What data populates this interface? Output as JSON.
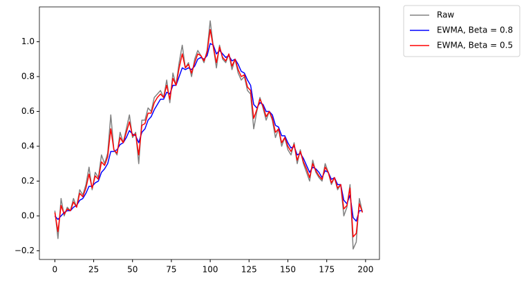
{
  "chart_data": {
    "type": "line",
    "x": [
      0,
      2,
      4,
      6,
      8,
      10,
      12,
      14,
      16,
      18,
      20,
      22,
      24,
      26,
      28,
      30,
      32,
      34,
      36,
      38,
      40,
      42,
      44,
      46,
      48,
      50,
      52,
      54,
      56,
      58,
      60,
      62,
      64,
      66,
      68,
      70,
      72,
      74,
      76,
      78,
      80,
      82,
      84,
      86,
      88,
      90,
      92,
      94,
      96,
      98,
      100,
      102,
      104,
      106,
      108,
      110,
      112,
      114,
      116,
      118,
      120,
      122,
      124,
      126,
      128,
      130,
      132,
      134,
      136,
      138,
      140,
      142,
      144,
      146,
      148,
      150,
      152,
      154,
      156,
      158,
      160,
      162,
      164,
      166,
      168,
      170,
      172,
      174,
      176,
      178,
      180,
      182,
      184,
      186,
      188,
      190,
      192,
      194,
      196,
      198
    ],
    "series": [
      {
        "name": "Raw",
        "color": "#808080",
        "values": [
          0.03,
          -0.13,
          0.1,
          0.0,
          0.05,
          0.03,
          0.1,
          0.05,
          0.15,
          0.12,
          0.18,
          0.28,
          0.15,
          0.25,
          0.22,
          0.35,
          0.3,
          0.36,
          0.58,
          0.38,
          0.35,
          0.48,
          0.42,
          0.5,
          0.58,
          0.45,
          0.48,
          0.3,
          0.55,
          0.55,
          0.62,
          0.6,
          0.68,
          0.7,
          0.72,
          0.68,
          0.78,
          0.65,
          0.82,
          0.75,
          0.88,
          0.98,
          0.85,
          0.88,
          0.8,
          0.9,
          0.95,
          0.92,
          0.88,
          0.95,
          1.12,
          0.97,
          0.85,
          0.98,
          0.9,
          0.88,
          0.93,
          0.84,
          0.9,
          0.82,
          0.78,
          0.8,
          0.72,
          0.7,
          0.5,
          0.6,
          0.68,
          0.62,
          0.55,
          0.6,
          0.55,
          0.45,
          0.5,
          0.4,
          0.45,
          0.38,
          0.35,
          0.42,
          0.3,
          0.38,
          0.3,
          0.25,
          0.2,
          0.32,
          0.25,
          0.22,
          0.2,
          0.3,
          0.25,
          0.18,
          0.22,
          0.15,
          0.18,
          0.0,
          0.05,
          0.18,
          -0.19,
          -0.15,
          0.1,
          0.02
        ]
      },
      {
        "name": "EWMA, Beta = 0.8",
        "color": "#0000ff",
        "values": [
          0.0,
          -0.02,
          0.0,
          0.02,
          0.03,
          0.03,
          0.05,
          0.06,
          0.09,
          0.1,
          0.13,
          0.17,
          0.17,
          0.19,
          0.2,
          0.25,
          0.27,
          0.3,
          0.37,
          0.37,
          0.38,
          0.41,
          0.42,
          0.45,
          0.49,
          0.47,
          0.46,
          0.42,
          0.48,
          0.5,
          0.55,
          0.57,
          0.61,
          0.64,
          0.67,
          0.67,
          0.71,
          0.7,
          0.75,
          0.75,
          0.8,
          0.85,
          0.84,
          0.85,
          0.84,
          0.86,
          0.9,
          0.91,
          0.9,
          0.92,
          0.99,
          0.98,
          0.93,
          0.95,
          0.93,
          0.91,
          0.92,
          0.89,
          0.9,
          0.87,
          0.83,
          0.82,
          0.78,
          0.75,
          0.64,
          0.62,
          0.65,
          0.64,
          0.6,
          0.6,
          0.58,
          0.52,
          0.51,
          0.46,
          0.46,
          0.42,
          0.39,
          0.4,
          0.35,
          0.36,
          0.33,
          0.29,
          0.25,
          0.28,
          0.27,
          0.25,
          0.22,
          0.26,
          0.25,
          0.21,
          0.22,
          0.18,
          0.18,
          0.09,
          0.07,
          0.12,
          -0.01,
          -0.03,
          0.03,
          0.03
        ]
      },
      {
        "name": "EWMA, Beta = 0.5",
        "color": "#ff0000",
        "values": [
          0.02,
          -0.09,
          0.06,
          0.01,
          0.04,
          0.03,
          0.08,
          0.05,
          0.13,
          0.11,
          0.16,
          0.24,
          0.16,
          0.23,
          0.21,
          0.31,
          0.29,
          0.34,
          0.5,
          0.38,
          0.36,
          0.45,
          0.42,
          0.48,
          0.54,
          0.46,
          0.47,
          0.35,
          0.52,
          0.53,
          0.59,
          0.59,
          0.65,
          0.68,
          0.7,
          0.68,
          0.75,
          0.67,
          0.79,
          0.75,
          0.85,
          0.93,
          0.85,
          0.87,
          0.82,
          0.88,
          0.93,
          0.92,
          0.89,
          0.94,
          1.07,
          0.97,
          0.88,
          0.97,
          0.91,
          0.89,
          0.93,
          0.86,
          0.9,
          0.84,
          0.8,
          0.81,
          0.74,
          0.72,
          0.56,
          0.61,
          0.67,
          0.63,
          0.57,
          0.6,
          0.56,
          0.48,
          0.5,
          0.42,
          0.45,
          0.4,
          0.37,
          0.41,
          0.32,
          0.37,
          0.31,
          0.27,
          0.22,
          0.3,
          0.26,
          0.23,
          0.21,
          0.28,
          0.25,
          0.19,
          0.22,
          0.16,
          0.18,
          0.04,
          0.06,
          0.16,
          -0.12,
          -0.1,
          0.07,
          0.02
        ]
      }
    ],
    "xlim": [
      -9.95,
      208.95
    ],
    "xticks": [
      0,
      25,
      50,
      75,
      100,
      125,
      150,
      175,
      200
    ],
    "ylim": [
      -0.25,
      1.2
    ],
    "yticks": [
      {
        "value": -0.2,
        "label": "−0.2"
      },
      {
        "value": 0,
        "label": "0.0"
      },
      0.2,
      0.4,
      0.6,
      0.8,
      {
        "value": 1,
        "label": "1.0"
      }
    ],
    "legend": "outside-upper-right"
  }
}
